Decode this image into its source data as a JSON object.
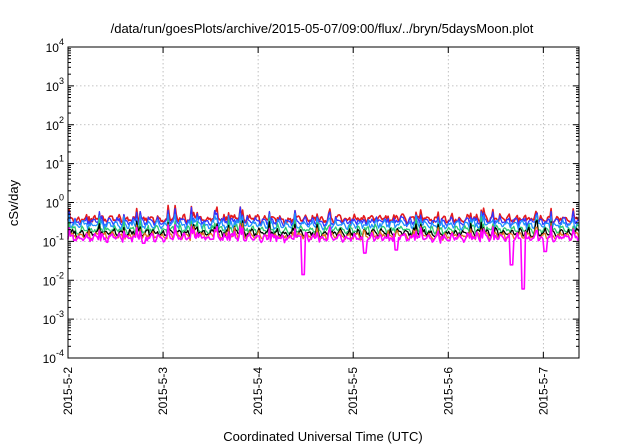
{
  "chart_data": {
    "type": "line",
    "title": "/data/run/goesPlots/archive/2015-05-07/09:00/flux/../bryn/5daysMoon.plot",
    "xlabel": "Coordinated Universal Time (UTC)",
    "ylabel": "cSv/day",
    "yscale": "log",
    "ylim": [
      0.0001,
      10000
    ],
    "y_ticks": [
      {
        "base": "10",
        "exp": "-4"
      },
      {
        "base": "10",
        "exp": "-3"
      },
      {
        "base": "10",
        "exp": "-2"
      },
      {
        "base": "10",
        "exp": "-1"
      },
      {
        "base": "10",
        "exp": "0"
      },
      {
        "base": "10",
        "exp": "1"
      },
      {
        "base": "10",
        "exp": "2"
      },
      {
        "base": "10",
        "exp": "3"
      },
      {
        "base": "10",
        "exp": "4"
      }
    ],
    "xlim": [
      "2015-05-02 00:00",
      "2015-05-07 09:00"
    ],
    "x_ticks": [
      "2015-5-2",
      "2015-5-3",
      "2015-5-4",
      "2015-5-5",
      "2015-5-6",
      "2015-5-7"
    ],
    "grid": true,
    "series": [
      {
        "color": "#e41a1c",
        "base": 0.38,
        "dips": []
      },
      {
        "color": "#3333ff",
        "base": 0.33,
        "dips": []
      },
      {
        "color": "#1e90ff",
        "base": 0.27,
        "dips": []
      },
      {
        "color": "#2ecc71",
        "base": 0.2,
        "dips": []
      },
      {
        "color": "#000000",
        "base": 0.165,
        "dips": []
      },
      {
        "color": "#e07020",
        "base": 0.14,
        "dips": []
      },
      {
        "color": "#ff00ff",
        "base": 0.125,
        "dips": [
          {
            "x": "2015-05-02 19:00",
            "y": 0.09
          },
          {
            "x": "2015-05-04 11:30",
            "y": 0.014
          },
          {
            "x": "2015-05-05 03:00",
            "y": 0.05
          },
          {
            "x": "2015-05-05 11:00",
            "y": 0.06
          },
          {
            "x": "2015-05-06 16:00",
            "y": 0.025
          },
          {
            "x": "2015-05-06 19:00",
            "y": 0.006
          },
          {
            "x": "2015-05-07 00:30",
            "y": 0.055
          }
        ]
      }
    ]
  }
}
